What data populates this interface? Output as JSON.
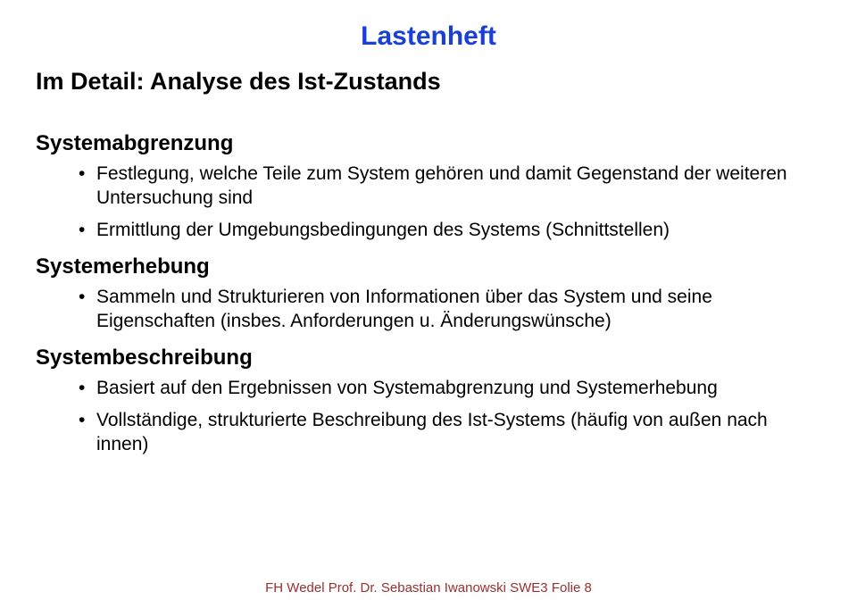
{
  "colors": {
    "blue": "#1a3fd6",
    "text": "#000000",
    "footer": "#9a2f2f",
    "background": "#ffffff"
  },
  "title": "Lastenheft",
  "subtitle": "Im Detail: Analyse des Ist-Zustands",
  "sections": [
    {
      "heading": "Systemabgrenzung",
      "bullets": [
        "Festlegung, welche Teile zum System gehören und damit Gegenstand der weiteren Untersuchung sind",
        "Ermittlung der Umgebungsbedingungen des Systems (Schnittstellen)"
      ]
    },
    {
      "heading": "Systemerhebung",
      "bullets": [
        "Sammeln und Strukturieren von Informationen über das System und seine Eigenschaften (insbes. Anforderungen u. Änderungswünsche)"
      ]
    },
    {
      "heading": "Systembeschreibung",
      "bullets": [
        "Basiert auf den Ergebnissen von Systemabgrenzung und Systemerhebung",
        "Vollständige, strukturierte Beschreibung des Ist-Systems (häufig von außen nach innen)"
      ]
    }
  ],
  "footer": "FH Wedel Prof. Dr. Sebastian Iwanowski SWE3 Folie 8"
}
